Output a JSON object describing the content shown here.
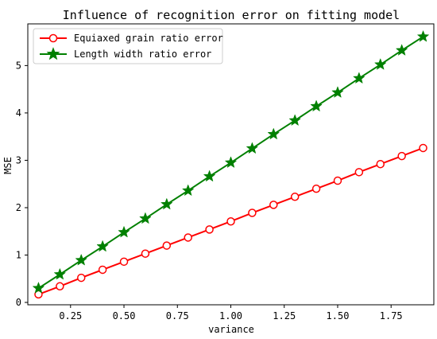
{
  "chart_data": {
    "type": "line",
    "title": "Influence of recognition error on fitting model",
    "xlabel": "variance",
    "ylabel": "MSE",
    "xlim": [
      0.05,
      1.95
    ],
    "ylim": [
      -0.05,
      5.88
    ],
    "xticks": [
      0.25,
      0.5,
      0.75,
      1.0,
      1.25,
      1.5,
      1.75
    ],
    "xtick_labels": [
      "0.25",
      "0.50",
      "0.75",
      "1.00",
      "1.25",
      "1.50",
      "1.75"
    ],
    "yticks": [
      0,
      1,
      2,
      3,
      4,
      5
    ],
    "ytick_labels": [
      "0",
      "1",
      "2",
      "3",
      "4",
      "5"
    ],
    "grid": false,
    "legend_position": "top-left",
    "x": [
      0.1,
      0.2,
      0.3,
      0.4,
      0.5,
      0.6,
      0.7,
      0.8,
      0.9,
      1.0,
      1.1,
      1.2,
      1.3,
      1.4,
      1.5,
      1.6,
      1.7,
      1.8,
      1.9
    ],
    "series": [
      {
        "name": "Equiaxed grain ratio error",
        "color": "#ff0000",
        "marker": "circle",
        "values": [
          0.17,
          0.34,
          0.52,
          0.69,
          0.86,
          1.03,
          1.2,
          1.37,
          1.54,
          1.71,
          1.89,
          2.06,
          2.23,
          2.4,
          2.57,
          2.75,
          2.92,
          3.09,
          3.26
        ]
      },
      {
        "name": "Length width ratio error",
        "color": "#008000",
        "marker": "star",
        "values": [
          0.3,
          0.59,
          0.89,
          1.18,
          1.48,
          1.77,
          2.07,
          2.36,
          2.66,
          2.95,
          3.25,
          3.55,
          3.84,
          4.14,
          4.43,
          4.73,
          5.02,
          5.32,
          5.61
        ]
      }
    ]
  }
}
